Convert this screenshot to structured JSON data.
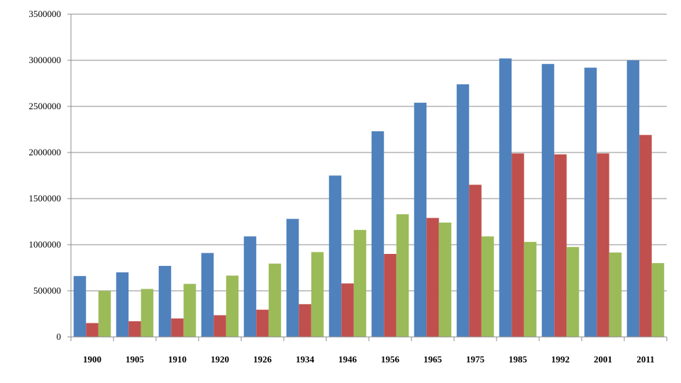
{
  "chart_data": {
    "type": "bar",
    "title": "",
    "xlabel": "",
    "ylabel": "",
    "ylim": [
      0,
      3500000
    ],
    "yticks": [
      0,
      500000,
      1000000,
      1500000,
      2000000,
      2500000,
      3000000,
      3500000
    ],
    "yticks_text": [
      "0",
      "500000",
      "1000000",
      "1500000",
      "2000000",
      "2500000",
      "3000000",
      "3500000"
    ],
    "grid": true,
    "legend": "none",
    "categories": [
      "1900",
      "1905",
      "1910",
      "1920",
      "1926",
      "1934",
      "1946",
      "1956",
      "1965",
      "1975",
      "1985",
      "1992",
      "2001",
      "2011"
    ],
    "series": [
      {
        "color": "#4F81BD",
        "values": [
          660000,
          700000,
          770000,
          910000,
          1090000,
          1280000,
          1750000,
          2230000,
          2540000,
          2740000,
          3020000,
          2960000,
          2920000,
          3000000
        ]
      },
      {
        "color": "#C0504D",
        "values": [
          150000,
          170000,
          200000,
          235000,
          295000,
          355000,
          580000,
          900000,
          1290000,
          1650000,
          1990000,
          1980000,
          1990000,
          2190000
        ]
      },
      {
        "color": "#9BBB59",
        "values": [
          500000,
          520000,
          575000,
          665000,
          795000,
          920000,
          1160000,
          1330000,
          1240000,
          1090000,
          1030000,
          975000,
          915000,
          800000
        ]
      }
    ]
  }
}
